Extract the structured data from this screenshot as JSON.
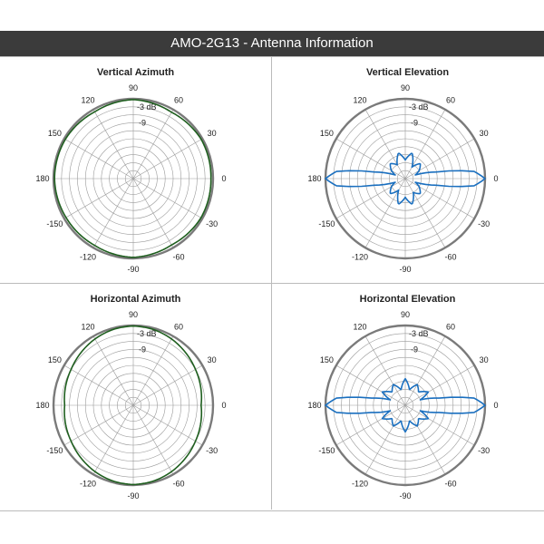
{
  "header": {
    "title": "AMO-2G13 - Antenna Information"
  },
  "colors": {
    "azimuth_pattern": "#1f5f1f",
    "elevation_pattern": "#1a6fbf",
    "outer_ring": "#7a7a7a",
    "grid": "#9a9a9a"
  },
  "chart_data": [
    {
      "type": "polar",
      "title": "Vertical Azimuth",
      "angle_labels": [
        "90",
        "60",
        "30",
        "0",
        "-30",
        "-60",
        "-90",
        "-120",
        "-150",
        "180",
        "150",
        "120"
      ],
      "ring_labels": [
        "-3 dB",
        "-9"
      ],
      "series": [
        {
          "color": "#1f5f1f",
          "points": [
            [
              0,
              -0.8
            ],
            [
              30,
              -0.5
            ],
            [
              60,
              -1.2
            ],
            [
              90,
              -0.3
            ],
            [
              120,
              -1.0
            ],
            [
              150,
              -0.5
            ],
            [
              180,
              -0.4
            ],
            [
              210,
              -0.8
            ],
            [
              240,
              -1.0
            ],
            [
              270,
              -0.4
            ],
            [
              300,
              -1.2
            ],
            [
              330,
              -0.6
            ]
          ]
        }
      ]
    },
    {
      "type": "polar",
      "title": "Vertical Elevation",
      "angle_labels": [
        "90",
        "60",
        "30",
        "0",
        "-30",
        "-60",
        "-90",
        "-120",
        "-150",
        "180",
        "150",
        "120"
      ],
      "ring_labels": [
        "-3 dB",
        "-9"
      ],
      "series": [
        {
          "color": "#1a6fbf",
          "points": [
            [
              0,
              0
            ],
            [
              6,
              -4
            ],
            [
              12,
              -18
            ],
            [
              20,
              -26
            ],
            [
              30,
              -24
            ],
            [
              45,
              -22
            ],
            [
              60,
              -25
            ],
            [
              75,
              -20
            ],
            [
              90,
              -23
            ],
            [
              105,
              -20
            ],
            [
              120,
              -24
            ],
            [
              135,
              -22
            ],
            [
              150,
              -24
            ],
            [
              160,
              -26
            ],
            [
              168,
              -18
            ],
            [
              174,
              -4
            ],
            [
              180,
              0
            ],
            [
              186,
              -4
            ],
            [
              192,
              -18
            ],
            [
              200,
              -26
            ],
            [
              210,
              -24
            ],
            [
              225,
              -22
            ],
            [
              240,
              -25
            ],
            [
              255,
              -20
            ],
            [
              270,
              -23
            ],
            [
              285,
              -20
            ],
            [
              300,
              -24
            ],
            [
              315,
              -22
            ],
            [
              330,
              -24
            ],
            [
              340,
              -26
            ],
            [
              348,
              -18
            ],
            [
              354,
              -4
            ]
          ]
        }
      ]
    },
    {
      "type": "polar",
      "title": "Horizontal Azimuth",
      "angle_labels": [
        "90",
        "60",
        "30",
        "0",
        "-30",
        "-60",
        "-90",
        "-120",
        "-150",
        "180",
        "150",
        "120"
      ],
      "ring_labels": [
        "-3 dB",
        "-9"
      ],
      "series": [
        {
          "color": "#1f5f1f",
          "points": [
            [
              0,
              -4.5
            ],
            [
              30,
              -3.0
            ],
            [
              60,
              -1.2
            ],
            [
              75,
              -0.5
            ],
            [
              90,
              -0.2
            ],
            [
              105,
              -0.5
            ],
            [
              120,
              -1.2
            ],
            [
              150,
              -3.0
            ],
            [
              180,
              -4.2
            ],
            [
              210,
              -3.0
            ],
            [
              240,
              -1.2
            ],
            [
              255,
              -0.5
            ],
            [
              270,
              -0.2
            ],
            [
              285,
              -0.5
            ],
            [
              300,
              -1.2
            ],
            [
              330,
              -3.0
            ]
          ]
        }
      ]
    },
    {
      "type": "polar",
      "title": "Horizontal Elevation",
      "angle_labels": [
        "90",
        "60",
        "30",
        "0",
        "-30",
        "-60",
        "-90",
        "-120",
        "-150",
        "180",
        "150",
        "120"
      ],
      "ring_labels": [
        "-3 dB",
        "-9"
      ],
      "series": [
        {
          "color": "#1a6fbf",
          "points": [
            [
              0,
              0
            ],
            [
              6,
              -4
            ],
            [
              12,
              -17
            ],
            [
              20,
              -24
            ],
            [
              30,
              -20
            ],
            [
              45,
              -23
            ],
            [
              60,
              -21
            ],
            [
              75,
              -24
            ],
            [
              90,
              -20
            ],
            [
              105,
              -24
            ],
            [
              120,
              -21
            ],
            [
              135,
              -23
            ],
            [
              150,
              -20
            ],
            [
              160,
              -24
            ],
            [
              168,
              -17
            ],
            [
              174,
              -4
            ],
            [
              180,
              0
            ],
            [
              186,
              -4
            ],
            [
              192,
              -17
            ],
            [
              200,
              -24
            ],
            [
              210,
              -20
            ],
            [
              225,
              -23
            ],
            [
              240,
              -21
            ],
            [
              255,
              -24
            ],
            [
              270,
              -20
            ],
            [
              285,
              -24
            ],
            [
              300,
              -21
            ],
            [
              315,
              -23
            ],
            [
              330,
              -20
            ],
            [
              340,
              -24
            ],
            [
              348,
              -17
            ],
            [
              354,
              -4
            ]
          ]
        }
      ]
    }
  ]
}
